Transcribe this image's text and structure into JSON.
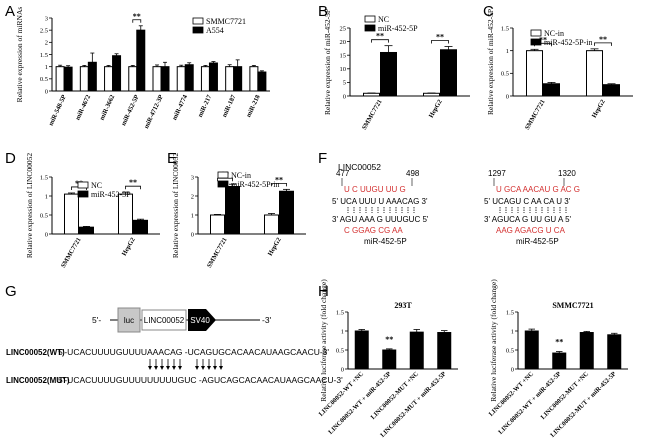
{
  "panel_labels": [
    "A",
    "B",
    "C",
    "D",
    "E",
    "F",
    "G",
    "H"
  ],
  "chart_data": [
    {
      "panel": "A",
      "type": "bar",
      "ylabel": "Relative expression of miRNAs",
      "ylim": [
        0,
        3
      ],
      "yticks": [
        0,
        0.5,
        1,
        1.5,
        2,
        2.5,
        3
      ],
      "categories": [
        "miR-548-5P",
        "miR-4672",
        "miR-3662",
        "miR-452-5P",
        "miR-4712-3P",
        "miR-4774",
        "miR-217",
        "miR-187",
        "miR-218"
      ],
      "series": [
        {
          "name": "SMMC7721",
          "color": "#ffffff",
          "values": [
            1,
            1,
            1,
            1,
            1,
            1,
            1,
            1,
            1
          ],
          "errors": [
            0.06,
            0.05,
            0.05,
            0.05,
            0.07,
            0.06,
            0.05,
            0.08,
            0.05
          ]
        },
        {
          "name": "A554",
          "color": "#000000",
          "values": [
            0.98,
            1.18,
            1.45,
            2.5,
            1.0,
            1.08,
            1.15,
            1.0,
            0.78
          ],
          "errors": [
            0.06,
            0.38,
            0.08,
            0.18,
            0.18,
            0.08,
            0.06,
            0.28,
            0.05
          ]
        }
      ],
      "annotations": [
        {
          "category": "miR-452-5P",
          "text": "**"
        }
      ],
      "legend": "top-right"
    },
    {
      "panel": "B",
      "type": "bar",
      "ylabel": "Relative expression of miR-452-5P",
      "ylim": [
        0,
        25
      ],
      "yticks": [
        0,
        5,
        10,
        15,
        20,
        25
      ],
      "categories": [
        "SMMC7721",
        "HepG2"
      ],
      "series": [
        {
          "name": "NC",
          "color": "#ffffff",
          "values": [
            1,
            1
          ],
          "errors": [
            0.1,
            0.1
          ]
        },
        {
          "name": "miR-452-5P",
          "color": "#000000",
          "values": [
            16,
            17
          ],
          "errors": [
            2.5,
            1.2
          ]
        }
      ],
      "annotations": [
        {
          "category": "SMMC7721",
          "text": "**"
        },
        {
          "category": "HepG2",
          "text": "**"
        }
      ],
      "legend": "top-left"
    },
    {
      "panel": "C",
      "type": "bar",
      "ylabel": "Relative expression of miR-452-5P",
      "ylim": [
        0,
        1.5
      ],
      "yticks": [
        0,
        0.5,
        1,
        1.5
      ],
      "categories": [
        "SMMC7721",
        "HepG2"
      ],
      "series": [
        {
          "name": "NC-in",
          "color": "#ffffff",
          "values": [
            1,
            1
          ],
          "errors": [
            0.03,
            0.04
          ]
        },
        {
          "name": "miR-452-5P-in",
          "color": "#000000",
          "values": [
            0.27,
            0.25
          ],
          "errors": [
            0.03,
            0.02
          ]
        }
      ],
      "annotations": [
        {
          "category": "SMMC7721",
          "text": "**"
        },
        {
          "category": "HepG2",
          "text": "**"
        }
      ],
      "legend": "top-left"
    },
    {
      "panel": "D",
      "type": "bar",
      "ylabel": "Relative expression of LINC00052",
      "ylim": [
        0,
        1.5
      ],
      "yticks": [
        0,
        0.5,
        1,
        1.5
      ],
      "categories": [
        "SMMC7721",
        "HepG2"
      ],
      "series": [
        {
          "name": "NC",
          "color": "#ffffff",
          "values": [
            1.05,
            1.05
          ],
          "errors": [
            0.03,
            0.05
          ]
        },
        {
          "name": "miR-452-5P",
          "color": "#000000",
          "values": [
            0.18,
            0.36
          ],
          "errors": [
            0.02,
            0.03
          ]
        }
      ],
      "annotations": [
        {
          "category": "SMMC7721",
          "text": "**"
        },
        {
          "category": "HepG2",
          "text": "**"
        }
      ],
      "legend": "top-left"
    },
    {
      "panel": "E",
      "type": "bar",
      "ylabel": "Relative expression of LINC00052",
      "ylim": [
        0,
        3
      ],
      "yticks": [
        0,
        1,
        2,
        3
      ],
      "categories": [
        "SMMC7721",
        "HepG2"
      ],
      "series": [
        {
          "name": "NC-in",
          "color": "#ffffff",
          "values": [
            1,
            1
          ],
          "errors": [
            0.03,
            0.08
          ]
        },
        {
          "name": "miR-452-5P-in",
          "color": "#000000",
          "values": [
            2.5,
            2.25
          ],
          "errors": [
            0.12,
            0.1
          ]
        }
      ],
      "annotations": [
        {
          "category": "SMMC7721",
          "text": "**"
        },
        {
          "category": "HepG2",
          "text": "**"
        }
      ],
      "legend": "top-left"
    },
    {
      "panel": "H1",
      "type": "bar",
      "title": "293T",
      "ylabel": "Relative luciferase activity (fold change)",
      "ylim": [
        0,
        1.5
      ],
      "yticks": [
        0,
        0.5,
        1,
        1.5
      ],
      "categories": [
        "LINC00052-WT +NC",
        "LINC00052-WT + miR-452-5P",
        "LINC00052-MUT +NC",
        "LINC00052-MUT + miR-452-5P"
      ],
      "values": [
        1.0,
        0.5,
        0.97,
        0.96
      ],
      "errors": [
        0.04,
        0.03,
        0.07,
        0.05
      ],
      "color": "#000000",
      "annotations": [
        {
          "category": "LINC00052-WT + miR-452-5P",
          "text": "**"
        }
      ]
    },
    {
      "panel": "H2",
      "type": "bar",
      "title": "SMMC7721",
      "ylabel": "Relative luciferase activity (fold change)",
      "ylim": [
        0,
        1.5
      ],
      "yticks": [
        0,
        0.5,
        1,
        1.5
      ],
      "categories": [
        "LINC00052-WT +NC",
        "LINC00052-WT + miR-452-5P",
        "LINC00052-MUT +NC",
        "LINC00052-MUT + miR-452-5P"
      ],
      "values": [
        1.0,
        0.42,
        0.96,
        0.9
      ],
      "errors": [
        0.05,
        0.04,
        0.03,
        0.04
      ],
      "color": "#000000",
      "annotations": [
        {
          "category": "LINC00052-WT + miR-452-5P",
          "text": "**"
        }
      ]
    }
  ],
  "panel_f": {
    "title": "LINC00052",
    "site1": {
      "start": "477",
      "end": "498",
      "top_red": "U  C   UUGU  UU             G",
      "top_black": "5' UCA UUU      U    AAACAG  3'",
      "bottom_black": "3' AGU AAA      G    UUUGUC  5'",
      "bottom_red": "C  GGAG  CG          AA",
      "mirna": "miR-452-5P"
    },
    "site2": {
      "start": "1297",
      "end": "1320",
      "top_red": "U   GCA AACAU  G  AC  G",
      "top_black": "5' UCAGU C    AA CA  U  3'",
      "bottom_black": "3' AGUCA G    UU GU  A  5'",
      "bottom_red": "AAG AGACG  U  CA",
      "mirna": "miR-452-5P"
    }
  },
  "panel_g": {
    "prefix": "5'-",
    "suffix": "-3'",
    "boxes": [
      "luc",
      "LINC00052",
      "SV40"
    ],
    "wt_label": "LINC00052(WT)",
    "wt_seq": "5'-UCACUUUUGUUUUAAACAG  -UCAGUGCACAACAUAAGCAACU-3'",
    "mut_label": "LINC00052(MUT)",
    "mut_seq": "5'-UCACUUUUGUUUUUUUUUGUC  -AGUCAGCACAACAUAAGCAACU-3'"
  },
  "strings": {
    "sig": "**"
  }
}
